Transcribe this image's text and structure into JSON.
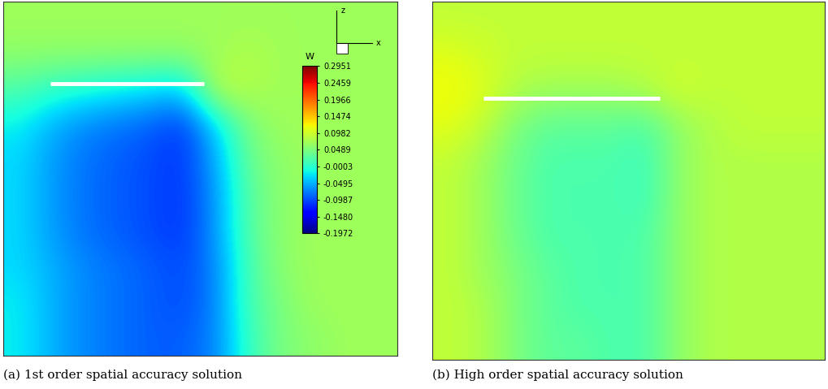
{
  "chart_data": [
    {
      "type": "heatmap",
      "caption": "(a) 1st order spatial accuracy solution",
      "colorbar_title": "W",
      "colorbar_range": [
        -0.1972,
        0.2951
      ],
      "colorbar_ticks": [
        0.2951,
        0.2459,
        0.1966,
        0.1474,
        0.0982,
        0.0489,
        -0.0003,
        -0.0495,
        -0.0987,
        {
          "value": -0.148,
          "label": "-0.1480"
        },
        -0.1972
      ],
      "axis_indicator": {
        "vertical": "z",
        "horizontal": "x"
      },
      "tick_labels": false,
      "cells": [
        [
          0.07,
          0.07,
          0.07,
          0.07,
          0.07,
          0.07,
          0.07,
          0.07,
          0.07,
          0.07,
          0.07,
          0.07
        ],
        [
          0.06,
          0.06,
          0.06,
          0.06,
          0.06,
          0.06,
          0.07,
          0.08,
          0.07,
          0.07,
          0.07,
          0.07
        ],
        [
          0.02,
          0.0,
          -0.01,
          -0.02,
          -0.03,
          -0.04,
          0.09,
          0.08,
          0.07,
          0.07,
          0.07,
          0.07
        ],
        [
          -0.02,
          -0.05,
          -0.07,
          -0.08,
          -0.09,
          -0.11,
          -0.03,
          0.05,
          0.07,
          0.07,
          0.07,
          0.07
        ],
        [
          -0.03,
          -0.06,
          -0.08,
          -0.09,
          -0.1,
          -0.11,
          -0.05,
          0.04,
          0.06,
          0.07,
          0.07,
          0.07
        ],
        [
          -0.03,
          -0.06,
          -0.08,
          -0.09,
          -0.1,
          -0.11,
          -0.06,
          0.03,
          0.06,
          0.07,
          0.07,
          0.07
        ],
        [
          -0.03,
          -0.06,
          -0.08,
          -0.09,
          -0.1,
          -0.11,
          -0.06,
          0.03,
          0.06,
          0.07,
          0.07,
          0.07
        ],
        [
          -0.03,
          -0.05,
          -0.07,
          -0.08,
          -0.09,
          -0.1,
          -0.07,
          0.02,
          0.06,
          0.07,
          0.07,
          0.07
        ],
        [
          -0.02,
          -0.05,
          -0.07,
          -0.08,
          -0.09,
          -0.1,
          -0.07,
          0.02,
          0.05,
          0.07,
          0.07,
          0.07
        ],
        [
          -0.02,
          -0.05,
          -0.07,
          -0.08,
          -0.09,
          -0.09,
          -0.07,
          0.01,
          0.05,
          0.06,
          0.07,
          0.07
        ]
      ]
    },
    {
      "type": "heatmap",
      "caption": "(b) High order spatial accuracy solution",
      "tick_labels": false,
      "cells": [
        [
          0.09,
          0.09,
          0.09,
          0.09,
          0.09,
          0.09,
          0.09,
          0.09,
          0.09,
          0.09,
          0.09,
          0.09
        ],
        [
          0.11,
          0.1,
          0.09,
          0.09,
          0.09,
          0.09,
          0.09,
          0.09,
          0.09,
          0.09,
          0.09,
          0.09
        ],
        [
          0.12,
          0.11,
          0.08,
          0.07,
          0.07,
          0.07,
          0.08,
          0.1,
          0.09,
          0.09,
          0.09,
          0.09
        ],
        [
          0.11,
          0.09,
          0.05,
          0.03,
          0.03,
          0.03,
          0.02,
          0.06,
          0.08,
          0.09,
          0.09,
          0.09
        ],
        [
          0.09,
          0.07,
          0.04,
          0.02,
          0.02,
          0.02,
          0.01,
          0.06,
          0.08,
          0.08,
          0.08,
          0.08
        ],
        [
          0.09,
          0.07,
          0.04,
          0.02,
          0.02,
          0.02,
          0.01,
          0.06,
          0.08,
          0.08,
          0.08,
          0.08
        ],
        [
          0.09,
          0.07,
          0.04,
          0.02,
          0.02,
          0.02,
          0.02,
          0.06,
          0.08,
          0.08,
          0.08,
          0.08
        ],
        [
          0.09,
          0.07,
          0.05,
          0.03,
          0.02,
          0.02,
          0.02,
          0.06,
          0.08,
          0.08,
          0.08,
          0.08
        ],
        [
          0.09,
          0.08,
          0.05,
          0.03,
          0.02,
          0.02,
          0.02,
          0.06,
          0.08,
          0.08,
          0.08,
          0.08
        ],
        [
          0.09,
          0.08,
          0.05,
          0.03,
          0.03,
          0.02,
          0.02,
          0.06,
          0.08,
          0.08,
          0.08,
          0.08
        ]
      ]
    }
  ]
}
